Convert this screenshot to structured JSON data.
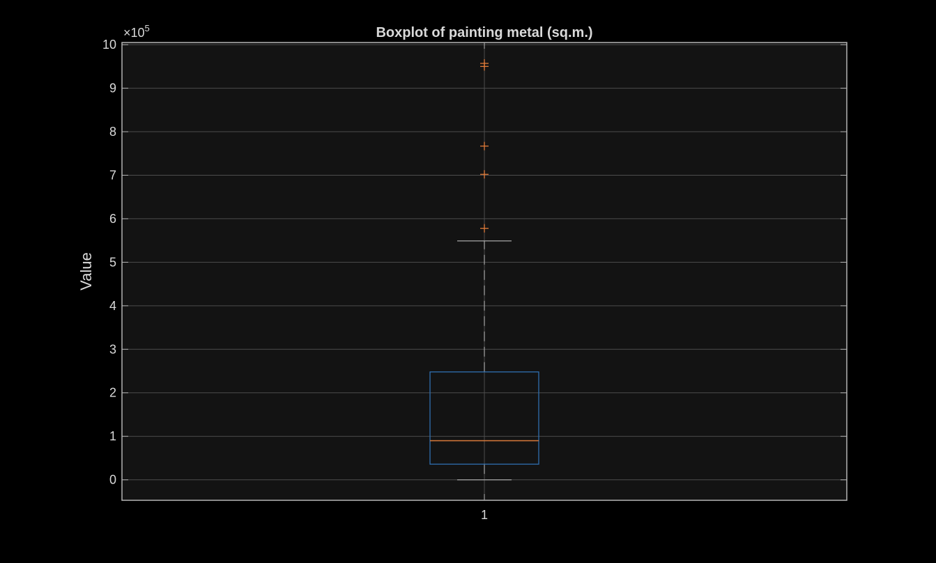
{
  "chart_data": {
    "type": "boxplot",
    "title": "Boxplot of painting metal (sq.m.)",
    "ylabel": "Value",
    "xlabel": "",
    "y_exponent_label": "×10",
    "y_exponent_power": "5",
    "ylim": [
      -0.47,
      10.05
    ],
    "yticks": [
      0,
      1,
      2,
      3,
      4,
      5,
      6,
      7,
      8,
      9,
      10
    ],
    "ytick_labels": [
      "0",
      "1",
      "2",
      "3",
      "4",
      "5",
      "6",
      "7",
      "8",
      "9",
      "10"
    ],
    "categories": [
      "1"
    ],
    "grid": true,
    "boxes": [
      {
        "category": "1",
        "whisker_low": 0,
        "q1": 0.36,
        "median": 0.9,
        "q3": 2.48,
        "whisker_high": 5.49,
        "outliers": [
          5.78,
          7.02,
          7.67,
          9.5,
          9.57
        ]
      }
    ],
    "colors": {
      "background": "#000000",
      "axes_bg": "#131313",
      "axes_edge": "#b4b4b4",
      "grid": "#4d4d4d",
      "box": "#2f6fb0",
      "median": "#d97a3a",
      "outlier": "#e07b39",
      "whisker": "#a6a6a6",
      "text": "#d9d9d9"
    }
  }
}
